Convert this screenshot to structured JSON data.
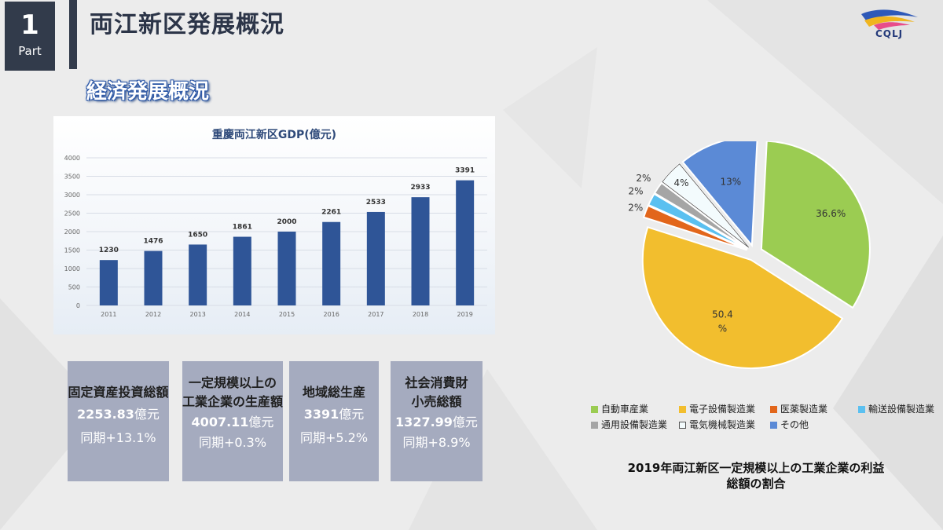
{
  "header": {
    "part_number": "1",
    "part_label": "Part",
    "title": "両江新区発展概況",
    "section_title": "経済発展概況",
    "logo_text": "CQLJ"
  },
  "bar_chart": {
    "type": "bar",
    "title": "重慶両江新区GDP(億元)",
    "categories": [
      "2011",
      "2012",
      "2013",
      "2014",
      "2015",
      "2016",
      "2017",
      "2018",
      "2019"
    ],
    "values": [
      1230,
      1476,
      1650,
      1861,
      2000,
      2261,
      2533,
      2933,
      3391
    ],
    "data_labels": [
      "1230",
      "1476",
      "1650",
      "1861",
      "2000",
      "2261",
      "2533",
      "2933",
      "3391"
    ],
    "ylim": [
      0,
      4000
    ],
    "yticks": [
      "0",
      "500",
      "1000",
      "1500",
      "2000",
      "2500",
      "3000",
      "3500",
      "4000"
    ],
    "bar_color": "#2f5597",
    "grid": true
  },
  "stats": [
    {
      "lines": [
        "固定資産投資総額"
      ],
      "value": "2253.83",
      "unit": "億元",
      "change": "同期+13.1%"
    },
    {
      "lines": [
        "一定規模以上の",
        "工業企業の生産額"
      ],
      "value": "4007.11",
      "unit": "億元",
      "change": "同期+0.3%"
    },
    {
      "lines": [
        "地域総生産"
      ],
      "value": "3391",
      "unit": "億元",
      "change": "同期+5.2%"
    },
    {
      "lines": [
        "社会消費財",
        "小売総額"
      ],
      "value": "1327.99",
      "unit": "億元",
      "change": "同期+8.9%"
    }
  ],
  "pie_chart": {
    "type": "pie",
    "slices": [
      {
        "name": "自動車産業",
        "value": 36.6,
        "label": "36.6%",
        "color": "#9bcc52"
      },
      {
        "name": "電子設備製造業",
        "value": 50.4,
        "label_lines": [
          "50.4",
          "%"
        ],
        "color": "#f2be2e"
      },
      {
        "name": "医薬製造業",
        "value": 2,
        "label": "2%",
        "color": "#e2661b"
      },
      {
        "name": "輸送設備製造業",
        "value": 2,
        "label": "2%",
        "color": "#5bc0f0"
      },
      {
        "name": "通用設備製造業",
        "value": 2,
        "label": "2%",
        "color": "#a5a5a5"
      },
      {
        "name": "電気機械製造業",
        "value": 4,
        "label": "4%",
        "color": "#f3fbfd"
      },
      {
        "name": "その他",
        "value": 13,
        "label": "13%",
        "color": "#5b8ad6"
      }
    ],
    "legend_placement": "bottom",
    "caption_lines": [
      "2019年両江新区一定規模以上の工業企業の利益",
      "総額の割合"
    ]
  }
}
